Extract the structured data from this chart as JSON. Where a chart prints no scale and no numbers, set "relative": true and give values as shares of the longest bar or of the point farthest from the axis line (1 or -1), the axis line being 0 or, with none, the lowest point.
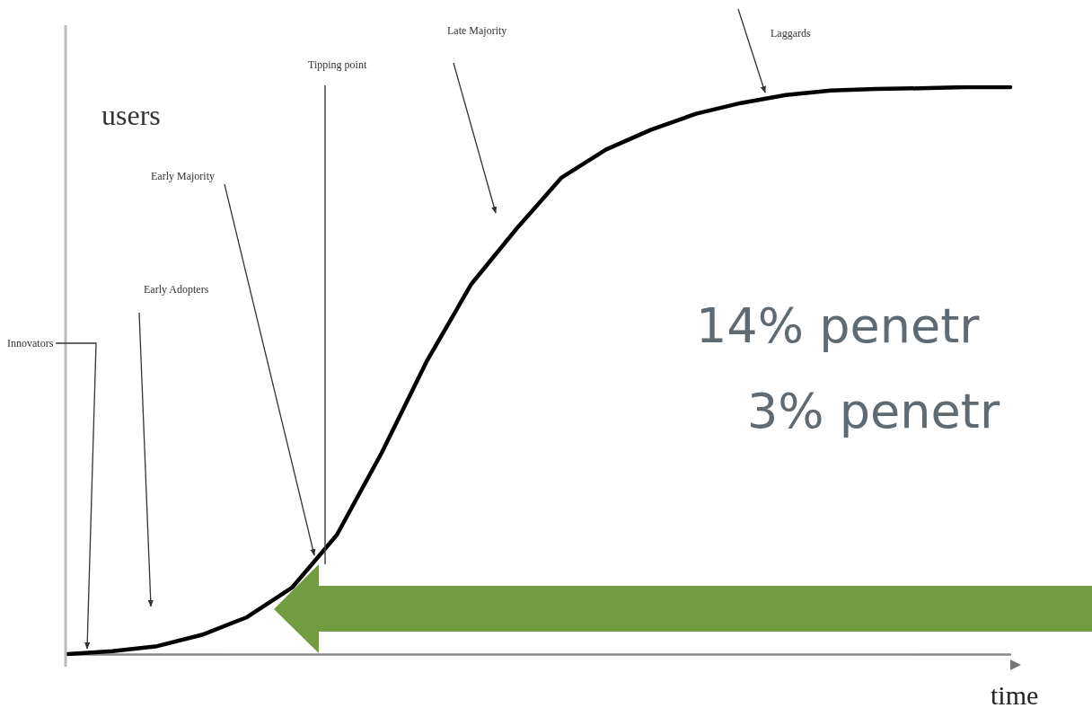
{
  "chart_data": {
    "type": "line",
    "relative": true,
    "xlabel": "time",
    "ylabel": "users",
    "categories": [
      null,
      null,
      null,
      null,
      null,
      null,
      null,
      null,
      null,
      null,
      null,
      null,
      null,
      null,
      null,
      null,
      null,
      null,
      null,
      null,
      null,
      null
    ],
    "series": [
      {
        "color": "#000000",
        "values": [
          0,
          0.005,
          0.014,
          0.034,
          0.065,
          0.117,
          0.21,
          0.355,
          0.516,
          0.653,
          0.75,
          0.84,
          0.89,
          0.925,
          0.953,
          0.972,
          0.986,
          0.994,
          0.997,
          0.998,
          1,
          1
        ]
      }
    ],
    "marker": "none",
    "line_style": "solid",
    "grid": false,
    "annotations": [
      "Innovators",
      "Early Adopters",
      "Early Majority",
      "Tipping point",
      "Late Majority",
      "Laggards",
      "14% penetr",
      "3% penetr"
    ]
  }
}
